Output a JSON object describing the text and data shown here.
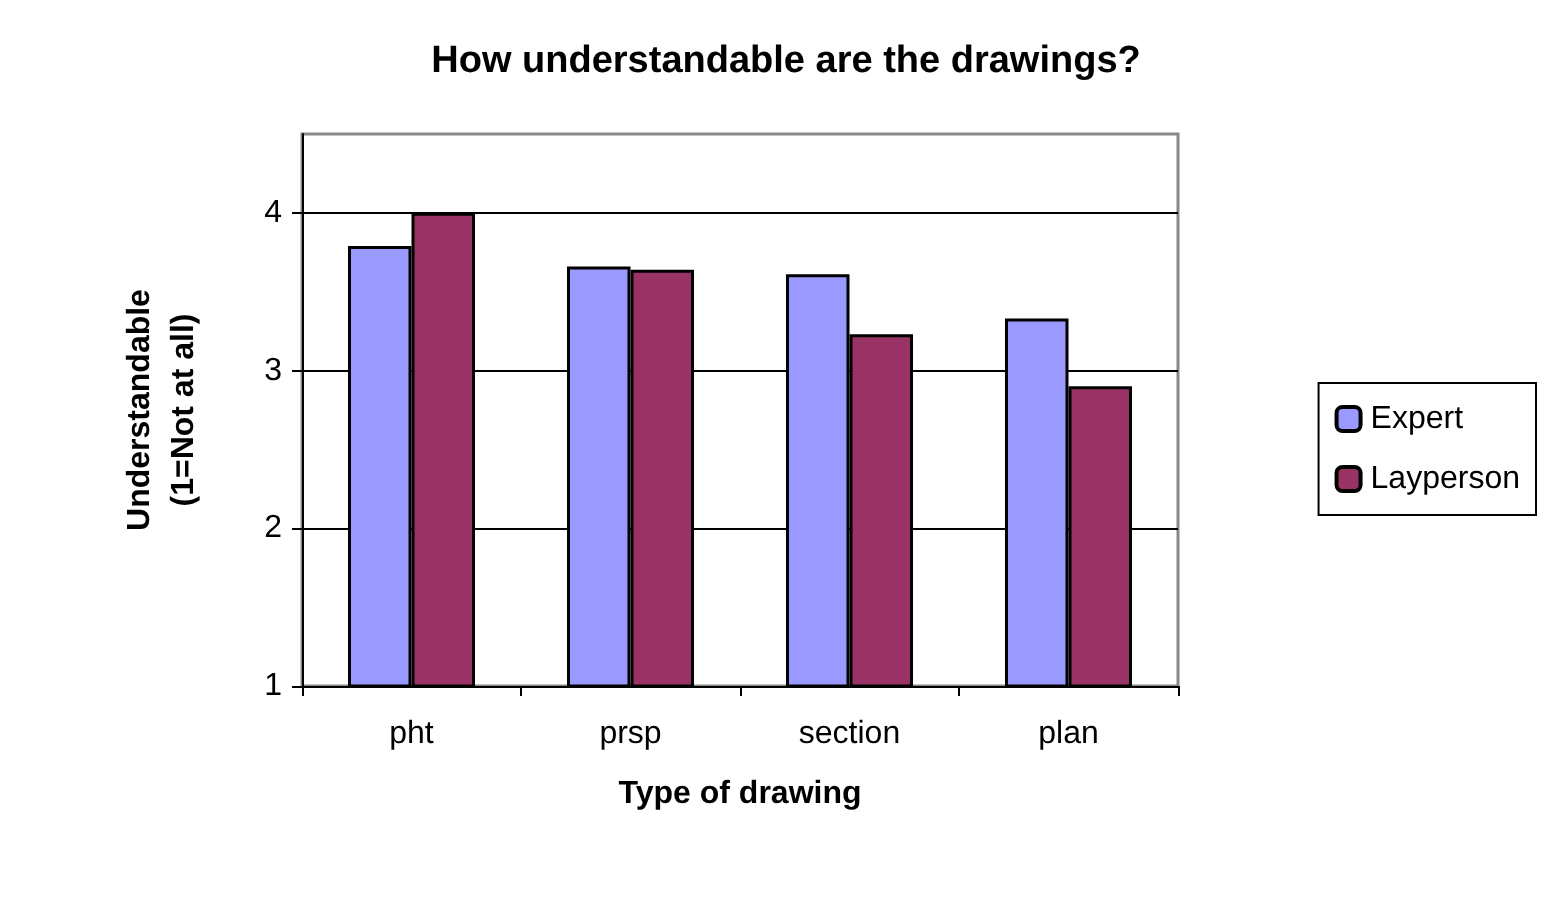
{
  "chart_data": {
    "type": "bar",
    "title": "How understandable are the drawings?",
    "xlabel": "Type of drawing",
    "ylabel": "Understandable\n(1=Not at all)",
    "categories": [
      "pht",
      "prsp",
      "section",
      "plan"
    ],
    "series": [
      {
        "name": "Expert",
        "color": "#9999ff",
        "values": [
          3.79,
          3.66,
          3.61,
          3.33
        ]
      },
      {
        "name": "Layperson",
        "color": "#993366",
        "values": [
          4.0,
          3.64,
          3.23,
          2.9
        ]
      }
    ],
    "ylim": [
      1,
      4.5
    ],
    "yticks": [
      1,
      2,
      3,
      4
    ],
    "grid": "y",
    "legend": "right"
  }
}
